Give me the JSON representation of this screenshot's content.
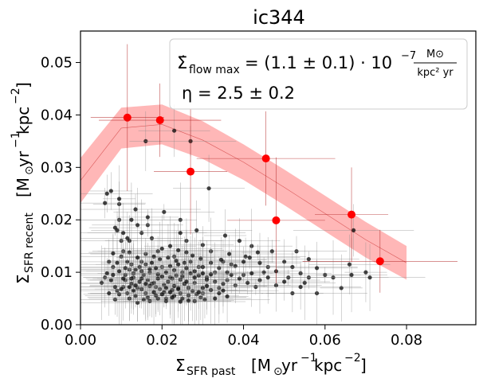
{
  "chart_data": {
    "type": "scatter",
    "title": "ic344",
    "xlabel": {
      "main": "Σ",
      "sub": "SFR past",
      "units": "[M",
      "units_sun": "⊙",
      "units_rest1": "yr",
      "exp1": "−1",
      "units_rest2": "kpc",
      "exp2": "−2",
      "close": "]"
    },
    "ylabel": {
      "main": "Σ",
      "sub": "SFR recent",
      "units": "[M",
      "units_sun": "⊙",
      "units_rest1": "yr",
      "exp1": "−1",
      "units_rest2": "kpc",
      "exp2": "−2",
      "close": "]"
    },
    "xlim": [
      0.0,
      0.097
    ],
    "ylim": [
      0.0,
      0.056
    ],
    "xticks": [
      "0.00",
      "0.02",
      "0.04",
      "0.06",
      "0.08"
    ],
    "yticks": [
      "0.00",
      "0.01",
      "0.02",
      "0.03",
      "0.04",
      "0.05"
    ],
    "legend": {
      "line1_lhs": "Σ̇",
      "line1_sub": "flow max",
      "line1_eq": "= (1.1 ± 0.1) · 10",
      "line1_exp": "−7",
      "line1_frac_num": "M⊙",
      "line1_frac_den": "kpc² yr",
      "line2": "η = 2.5 ± 0.2",
      "placement": "top-right"
    },
    "model_band": {
      "x": [
        0.0,
        0.01,
        0.02,
        0.03,
        0.04,
        0.05,
        0.06,
        0.07,
        0.08
      ],
      "y": [
        0.0275,
        0.0375,
        0.0382,
        0.0352,
        0.031,
        0.0262,
        0.0212,
        0.0162,
        0.0118
      ],
      "upper": [
        0.0318,
        0.0414,
        0.042,
        0.0388,
        0.0344,
        0.0296,
        0.0246,
        0.0196,
        0.015
      ],
      "lower": [
        0.0232,
        0.0336,
        0.0344,
        0.0316,
        0.0276,
        0.0228,
        0.0178,
        0.0128,
        0.0086
      ],
      "color": "#ff9999"
    },
    "binned": {
      "color": "#ff0000",
      "points": [
        {
          "x": 0.0115,
          "y": 0.0395,
          "xerr": 0.009,
          "yerr": 0.014
        },
        {
          "x": 0.0195,
          "y": 0.039,
          "xerr": 0.015,
          "yerr": 0.007
        },
        {
          "x": 0.027,
          "y": 0.0292,
          "xerr": 0.009,
          "yerr": 0.012
        },
        {
          "x": 0.0455,
          "y": 0.0317,
          "xerr": 0.017,
          "yerr": 0.009
        },
        {
          "x": 0.048,
          "y": 0.0199,
          "xerr": 0.012,
          "yerr": 0.012
        },
        {
          "x": 0.0665,
          "y": 0.021,
          "xerr": 0.009,
          "yerr": 0.009
        },
        {
          "x": 0.0735,
          "y": 0.0121,
          "xerr": 0.019,
          "yerr": 0.006
        }
      ]
    },
    "raw": {
      "color": "#000000",
      "points": [
        [
          0.01,
          0.016
        ],
        [
          0.0052,
          0.008
        ],
        [
          0.008,
          0.011
        ],
        [
          0.006,
          0.009
        ],
        [
          0.009,
          0.0065
        ],
        [
          0.007,
          0.012
        ],
        [
          0.011,
          0.0085
        ],
        [
          0.0085,
          0.0048
        ],
        [
          0.012,
          0.0105
        ],
        [
          0.0105,
          0.014
        ],
        [
          0.013,
          0.009
        ],
        [
          0.014,
          0.007
        ],
        [
          0.015,
          0.012
        ],
        [
          0.016,
          0.006
        ],
        [
          0.017,
          0.01
        ],
        [
          0.018,
          0.008
        ],
        [
          0.019,
          0.014
        ],
        [
          0.02,
          0.011
        ],
        [
          0.021,
          0.005
        ],
        [
          0.022,
          0.009
        ],
        [
          0.023,
          0.013
        ],
        [
          0.024,
          0.007
        ],
        [
          0.025,
          0.01
        ],
        [
          0.026,
          0.016
        ],
        [
          0.027,
          0.012
        ],
        [
          0.028,
          0.008
        ],
        [
          0.029,
          0.011
        ],
        [
          0.03,
          0.006
        ],
        [
          0.031,
          0.009
        ],
        [
          0.032,
          0.014
        ],
        [
          0.033,
          0.01
        ],
        [
          0.034,
          0.007
        ],
        [
          0.035,
          0.012
        ],
        [
          0.036,
          0.0085
        ],
        [
          0.037,
          0.0115
        ],
        [
          0.038,
          0.0075
        ],
        [
          0.04,
          0.0095
        ],
        [
          0.042,
          0.015
        ],
        [
          0.044,
          0.0085
        ],
        [
          0.046,
          0.011
        ],
        [
          0.048,
          0.0075
        ],
        [
          0.05,
          0.012
        ],
        [
          0.052,
          0.006
        ],
        [
          0.053,
          0.014
        ],
        [
          0.056,
          0.009
        ],
        [
          0.06,
          0.0095
        ],
        [
          0.062,
          0.009
        ],
        [
          0.064,
          0.007
        ],
        [
          0.066,
          0.0115
        ],
        [
          0.067,
          0.018
        ],
        [
          0.0095,
          0.023
        ],
        [
          0.0065,
          0.025
        ],
        [
          0.0135,
          0.022
        ],
        [
          0.0165,
          0.019
        ],
        [
          0.0205,
          0.0215
        ],
        [
          0.0245,
          0.02
        ],
        [
          0.0315,
          0.026
        ],
        [
          0.0285,
          0.018
        ],
        [
          0.0355,
          0.017
        ],
        [
          0.039,
          0.016
        ],
        [
          0.0405,
          0.013
        ],
        [
          0.045,
          0.01
        ],
        [
          0.047,
          0.014
        ],
        [
          0.051,
          0.009
        ],
        [
          0.055,
          0.008
        ],
        [
          0.058,
          0.006
        ],
        [
          0.016,
          0.035
        ],
        [
          0.023,
          0.037
        ],
        [
          0.012,
          0.016
        ],
        [
          0.0075,
          0.0255
        ],
        [
          0.006,
          0.0232
        ],
        [
          0.0095,
          0.02
        ],
        [
          0.0085,
          0.0185
        ],
        [
          0.014,
          0.019
        ],
        [
          0.015,
          0.0175
        ],
        [
          0.0175,
          0.0165
        ],
        [
          0.01,
          0.013
        ],
        [
          0.0115,
          0.012
        ],
        [
          0.0125,
          0.0115
        ],
        [
          0.0135,
          0.0105
        ],
        [
          0.0145,
          0.011
        ],
        [
          0.0155,
          0.0095
        ],
        [
          0.0165,
          0.0085
        ],
        [
          0.0175,
          0.0078
        ],
        [
          0.0185,
          0.0072
        ],
        [
          0.0195,
          0.0068
        ],
        [
          0.0205,
          0.0076
        ],
        [
          0.0215,
          0.0082
        ],
        [
          0.0225,
          0.0088
        ],
        [
          0.0235,
          0.0094
        ],
        [
          0.0245,
          0.0086
        ],
        [
          0.0255,
          0.0078
        ],
        [
          0.0265,
          0.007
        ],
        [
          0.0275,
          0.0064
        ],
        [
          0.0285,
          0.0058
        ],
        [
          0.0295,
          0.0052
        ],
        [
          0.0305,
          0.0048
        ],
        [
          0.0155,
          0.0048
        ],
        [
          0.0135,
          0.0055
        ],
        [
          0.0115,
          0.006
        ],
        [
          0.0095,
          0.0058
        ],
        [
          0.0105,
          0.0072
        ],
        [
          0.0125,
          0.0078
        ],
        [
          0.0145,
          0.0082
        ],
        [
          0.0165,
          0.0052
        ],
        [
          0.0185,
          0.0056
        ],
        [
          0.0205,
          0.0062
        ],
        [
          0.0225,
          0.0066
        ],
        [
          0.0245,
          0.006
        ],
        [
          0.0265,
          0.0056
        ],
        [
          0.011,
          0.0095
        ],
        [
          0.013,
          0.0098
        ],
        [
          0.015,
          0.0102
        ],
        [
          0.017,
          0.0106
        ],
        [
          0.019,
          0.0096
        ],
        [
          0.021,
          0.01
        ],
        [
          0.023,
          0.0104
        ],
        [
          0.025,
          0.0092
        ],
        [
          0.027,
          0.0098
        ],
        [
          0.029,
          0.0094
        ],
        [
          0.031,
          0.0086
        ],
        [
          0.033,
          0.0082
        ],
        [
          0.035,
          0.0078
        ],
        [
          0.037,
          0.0095
        ],
        [
          0.039,
          0.0088
        ],
        [
          0.041,
          0.008
        ],
        [
          0.043,
          0.0072
        ],
        [
          0.0195,
          0.0125
        ],
        [
          0.0215,
          0.0128
        ],
        [
          0.0235,
          0.0122
        ],
        [
          0.0255,
          0.0118
        ],
        [
          0.0275,
          0.0132
        ],
        [
          0.0295,
          0.0126
        ],
        [
          0.018,
          0.013
        ],
        [
          0.016,
          0.0135
        ],
        [
          0.014,
          0.0128
        ],
        [
          0.012,
          0.0138
        ],
        [
          0.02,
          0.0145
        ],
        [
          0.022,
          0.015
        ],
        [
          0.024,
          0.0142
        ],
        [
          0.026,
          0.0138
        ],
        [
          0.03,
          0.0152
        ],
        [
          0.032,
          0.0118
        ],
        [
          0.034,
          0.0108
        ],
        [
          0.036,
          0.01
        ],
        [
          0.038,
          0.0112
        ],
        [
          0.042,
          0.0098
        ],
        [
          0.044,
          0.0118
        ],
        [
          0.046,
          0.009
        ],
        [
          0.048,
          0.0102
        ],
        [
          0.05,
          0.0082
        ],
        [
          0.052,
          0.011
        ],
        [
          0.054,
          0.0098
        ],
        [
          0.056,
          0.0125
        ],
        [
          0.03,
          0.007
        ],
        [
          0.032,
          0.0066
        ],
        [
          0.034,
          0.006
        ],
        [
          0.036,
          0.0054
        ],
        [
          0.012,
          0.005
        ],
        [
          0.014,
          0.0042
        ],
        [
          0.017,
          0.0045
        ],
        [
          0.019,
          0.005
        ],
        [
          0.021,
          0.0045
        ],
        [
          0.023,
          0.0055
        ],
        [
          0.025,
          0.005
        ],
        [
          0.028,
          0.0045
        ],
        [
          0.033,
          0.005
        ],
        [
          0.035,
          0.0065
        ],
        [
          0.013,
          0.0065
        ],
        [
          0.015,
          0.0068
        ],
        [
          0.017,
          0.0074
        ],
        [
          0.021,
          0.007
        ],
        [
          0.023,
          0.0074
        ],
        [
          0.019,
          0.0088
        ],
        [
          0.015,
          0.0088
        ],
        [
          0.011,
          0.0108
        ],
        [
          0.009,
          0.0118
        ],
        [
          0.008,
          0.0136
        ],
        [
          0.0065,
          0.0098
        ],
        [
          0.0075,
          0.0085
        ],
        [
          0.0085,
          0.0072
        ],
        [
          0.01,
          0.0068
        ],
        [
          0.012,
          0.0072
        ],
        [
          0.0125,
          0.0088
        ],
        [
          0.016,
          0.0115
        ],
        [
          0.0175,
          0.0118
        ],
        [
          0.0185,
          0.0108
        ],
        [
          0.02,
          0.0092
        ],
        [
          0.022,
          0.0112
        ],
        [
          0.024,
          0.0115
        ],
        [
          0.026,
          0.0108
        ],
        [
          0.028,
          0.0102
        ],
        [
          0.03,
          0.011
        ],
        [
          0.032,
          0.0096
        ],
        [
          0.0345,
          0.0124
        ],
        [
          0.0365,
          0.0135
        ],
        [
          0.04,
          0.012
        ],
        [
          0.0415,
          0.0128
        ],
        [
          0.0435,
          0.0138
        ],
        [
          0.0665,
          0.0095
        ],
        [
          0.071,
          0.009
        ],
        [
          0.07,
          0.01
        ],
        [
          0.058,
          0.0108
        ],
        [
          0.054,
          0.0072
        ],
        [
          0.009,
          0.018
        ],
        [
          0.027,
          0.035
        ],
        [
          0.0245,
          0.0175
        ],
        [
          0.0165,
          0.0205
        ],
        [
          0.0125,
          0.02
        ],
        [
          0.0095,
          0.024
        ],
        [
          0.0105,
          0.0175
        ],
        [
          0.0115,
          0.0165
        ],
        [
          0.007,
          0.006
        ],
        [
          0.008,
          0.0095
        ],
        [
          0.0095,
          0.0102
        ],
        [
          0.0105,
          0.0088
        ],
        [
          0.0135,
          0.0075
        ],
        [
          0.016,
          0.0078
        ],
        [
          0.018,
          0.0062
        ],
        [
          0.02,
          0.0058
        ],
        [
          0.022,
          0.0062
        ],
        [
          0.024,
          0.0068
        ],
        [
          0.026,
          0.0082
        ],
        [
          0.028,
          0.009
        ],
        [
          0.03,
          0.0098
        ],
        [
          0.031,
          0.0074
        ],
        [
          0.029,
          0.0062
        ],
        [
          0.0265,
          0.0046
        ],
        [
          0.0245,
          0.0044
        ],
        [
          0.0225,
          0.0052
        ]
      ]
    }
  }
}
